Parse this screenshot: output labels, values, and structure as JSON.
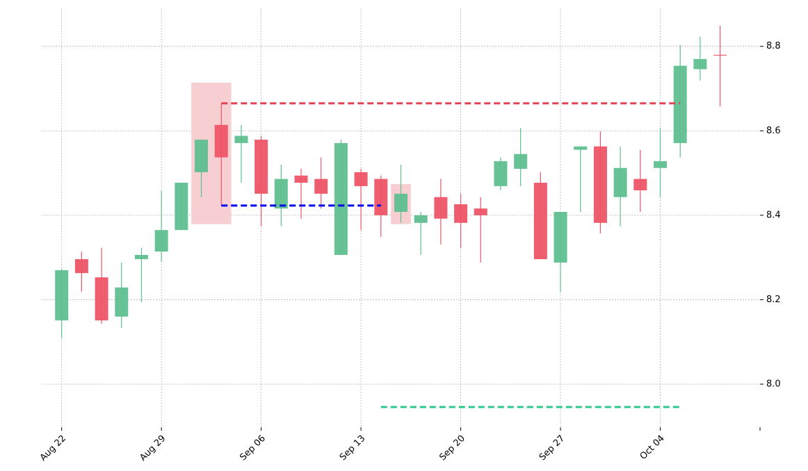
{
  "chart_data": {
    "type": "candlestick",
    "categories": [
      "Aug 22",
      null,
      null,
      null,
      null,
      "Aug 29",
      null,
      null,
      null,
      null,
      "Sep 06",
      null,
      null,
      null,
      null,
      "Sep 13",
      null,
      null,
      null,
      null,
      "Sep 20",
      null,
      null,
      null,
      null,
      "Sep 27",
      null,
      null,
      null,
      null,
      "Oct 04",
      null,
      null,
      null,
      null,
      null
    ],
    "open": [
      8.151,
      8.296,
      8.253,
      8.16,
      8.296,
      8.314,
      8.365,
      8.502,
      8.614,
      8.571,
      8.579,
      8.416,
      8.494,
      8.486,
      8.306,
      8.502,
      8.486,
      8.408,
      8.382,
      8.443,
      8.426,
      8.416,
      8.469,
      8.51,
      8.477,
      8.288,
      8.555,
      8.563,
      8.443,
      8.486,
      8.512,
      8.571,
      8.746,
      8.78,
      null,
      null
    ],
    "high": [
      8.273,
      8.314,
      8.323,
      8.288,
      8.323,
      8.458,
      8.477,
      8.579,
      8.665,
      8.614,
      8.588,
      8.52,
      8.51,
      8.537,
      8.579,
      8.51,
      8.494,
      8.52,
      8.408,
      8.486,
      8.451,
      8.443,
      8.537,
      8.607,
      8.502,
      8.408,
      8.563,
      8.599,
      8.563,
      8.555,
      8.607,
      8.803,
      8.823,
      8.849,
      null,
      null
    ],
    "low": [
      8.109,
      8.219,
      8.143,
      8.133,
      8.194,
      8.29,
      8.365,
      8.443,
      8.423,
      8.477,
      8.374,
      8.374,
      8.392,
      8.416,
      8.306,
      8.365,
      8.349,
      8.382,
      8.306,
      8.331,
      8.323,
      8.288,
      8.459,
      8.469,
      8.296,
      8.219,
      8.408,
      8.357,
      8.374,
      8.408,
      8.443,
      8.537,
      8.719,
      8.658,
      null,
      null
    ],
    "close": [
      8.27,
      8.263,
      8.151,
      8.229,
      8.306,
      8.365,
      8.477,
      8.579,
      8.537,
      8.588,
      8.451,
      8.486,
      8.477,
      8.451,
      8.571,
      8.469,
      8.4,
      8.451,
      8.4,
      8.392,
      8.382,
      8.4,
      8.528,
      8.545,
      8.296,
      8.408,
      8.563,
      8.382,
      8.512,
      8.459,
      8.528,
      8.754,
      8.77,
      8.78,
      null,
      null
    ],
    "up_color": "#5fbf8f",
    "down_color": "#ed5567",
    "xlim": [
      -1,
      35
    ],
    "ylim": [
      7.898,
      8.89
    ],
    "yticks": [
      {
        "value": 8.0,
        "label": "8.0"
      },
      8.2,
      8.4,
      8.6,
      8.8
    ],
    "grid": true,
    "highlights": [
      {
        "x": [
          7,
          8
        ],
        "y": [
          8.379,
          8.714
        ],
        "color": "#f7cfd3"
      },
      {
        "x": [
          17,
          17
        ],
        "y": [
          8.379,
          8.474
        ],
        "color": "#f7cfd3"
      }
    ],
    "lines": [
      {
        "x": [
          8,
          31
        ],
        "y": 8.665,
        "color": "#e04455"
      },
      {
        "x": [
          8,
          16
        ],
        "y": 8.423,
        "color": "#0000ee"
      },
      {
        "x": [
          16,
          31
        ],
        "y": 7.946,
        "color": "#2ec98a"
      }
    ]
  }
}
